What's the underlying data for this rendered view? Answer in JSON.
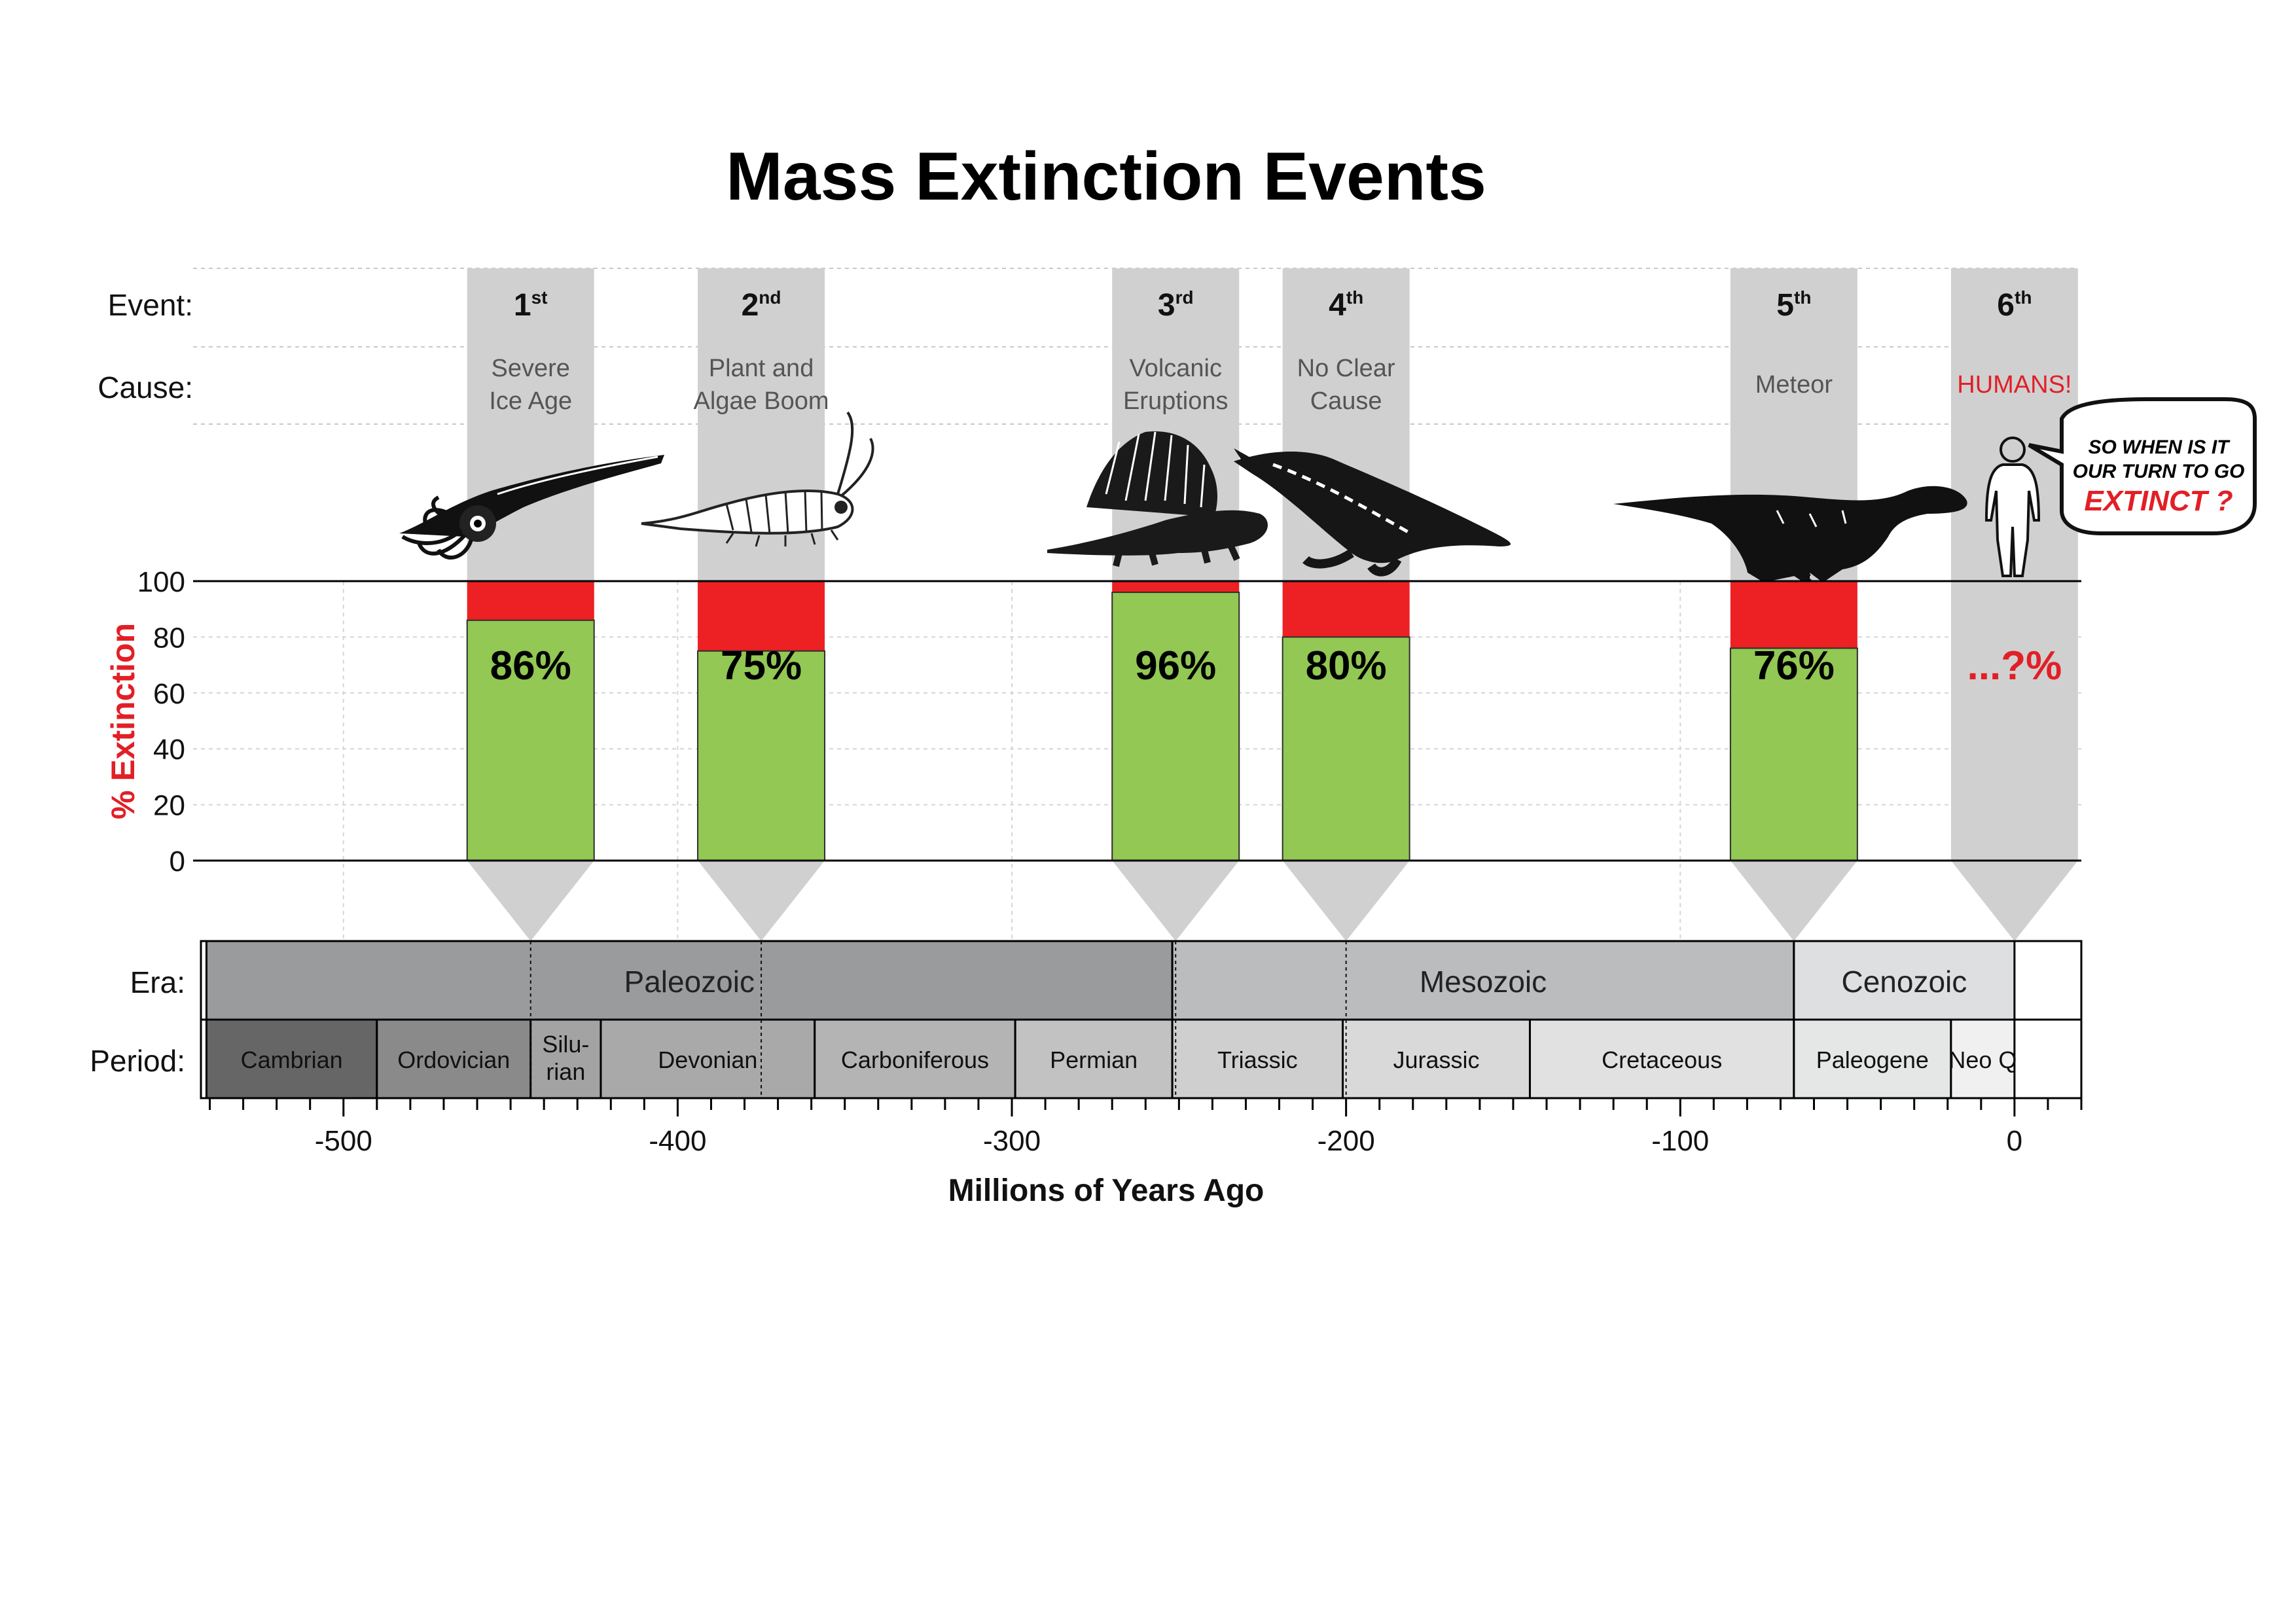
{
  "colors": {
    "extinct": "#ed2024",
    "survived": "#92c853",
    "column": "#d0d0d0",
    "label_red": "#e21f26"
  },
  "labels": {
    "event": "Event:",
    "cause": "Cause:",
    "era": "Era:",
    "period": "Period:"
  },
  "bubble": {
    "line1": "SO WHEN IS IT",
    "line2": "OUR TURN TO GO",
    "line3": "EXTINCT ?"
  },
  "chart_data": {
    "type": "bar",
    "title": "Mass Extinction Events",
    "xlabel": "Millions of Years Ago",
    "ylabel": "% Extinction",
    "xlim": [
      -545,
      20
    ],
    "ylim": [
      0,
      100
    ],
    "xticks": [
      -500,
      -400,
      -300,
      -200,
      -100,
      0
    ],
    "xtick_labels": [
      "-500",
      "-400",
      "-300",
      "-200",
      "-100",
      "0"
    ],
    "yticks": [
      0,
      20,
      40,
      60,
      80,
      100
    ],
    "ytick_labels": [
      "0",
      "20",
      "40",
      "60",
      "80",
      "100"
    ],
    "grid": true,
    "events": [
      {
        "num": "1",
        "sup": "st",
        "cause": [
          "Severe",
          "Ice Age"
        ],
        "time": -444,
        "value": 86,
        "label": "86%",
        "icon": "nautiloid-icon"
      },
      {
        "num": "2",
        "sup": "nd",
        "cause": [
          "Plant and",
          "Algae Boom"
        ],
        "time": -375,
        "value": 75,
        "label": "75%",
        "icon": "trilobite-icon"
      },
      {
        "num": "3",
        "sup": "rd",
        "cause": [
          "Volcanic",
          "Eruptions"
        ],
        "time": -251,
        "value": 96,
        "label": "96%",
        "icon": "dimetrodon-icon"
      },
      {
        "num": "4",
        "sup": "th",
        "cause": [
          "No Clear",
          "Cause"
        ],
        "time": -200,
        "value": 80,
        "label": "80%",
        "icon": "ichthyosaur-icon"
      },
      {
        "num": "5",
        "sup": "th",
        "cause": [
          "Meteor"
        ],
        "time": -66,
        "value": 76,
        "label": "76%",
        "icon": "dinosaur-icon"
      },
      {
        "num": "6",
        "sup": "th",
        "cause": [
          "HUMANS!"
        ],
        "time": 0,
        "value": null,
        "label": "...?%",
        "icon": "human-icon",
        "highlight": true
      }
    ],
    "eras": [
      {
        "name": "Paleozoic",
        "start": -541,
        "end": -252,
        "color": "#9a9b9d"
      },
      {
        "name": "Mesozoic",
        "start": -252,
        "end": -66,
        "color": "#bbbcbe"
      },
      {
        "name": "Cenozoic",
        "start": -66,
        "end": 0,
        "color": "#dedfe0"
      }
    ],
    "periods": [
      {
        "name": "Cambrian",
        "start": -541,
        "end": -490,
        "color": "#666666"
      },
      {
        "name": "Ordovician",
        "start": -490,
        "end": -444,
        "color": "#8a8a8a"
      },
      {
        "name": "Silu-rian",
        "lines": [
          "Silu-",
          "rian"
        ],
        "start": -444,
        "end": -423,
        "color": "#a3a3a3"
      },
      {
        "name": "Devonian",
        "start": -423,
        "end": -359,
        "color": "#a9a9a9"
      },
      {
        "name": "Carboniferous",
        "start": -359,
        "end": -299,
        "color": "#b4b4b4"
      },
      {
        "name": "Permian",
        "start": -299,
        "end": -252,
        "color": "#c2c2c2"
      },
      {
        "name": "Triassic",
        "start": -252,
        "end": -201,
        "color": "#cfcfcf"
      },
      {
        "name": "Jurassic",
        "start": -201,
        "end": -145,
        "color": "#d9d9d9"
      },
      {
        "name": "Cretaceous",
        "start": -145,
        "end": -66,
        "color": "#e1e1e1"
      },
      {
        "name": "Paleogene",
        "start": -66,
        "end": -19,
        "color": "#e5e6e6"
      },
      {
        "name": "Neo Q",
        "start": -19,
        "end": 0,
        "color": "#f0f0f0"
      }
    ]
  }
}
